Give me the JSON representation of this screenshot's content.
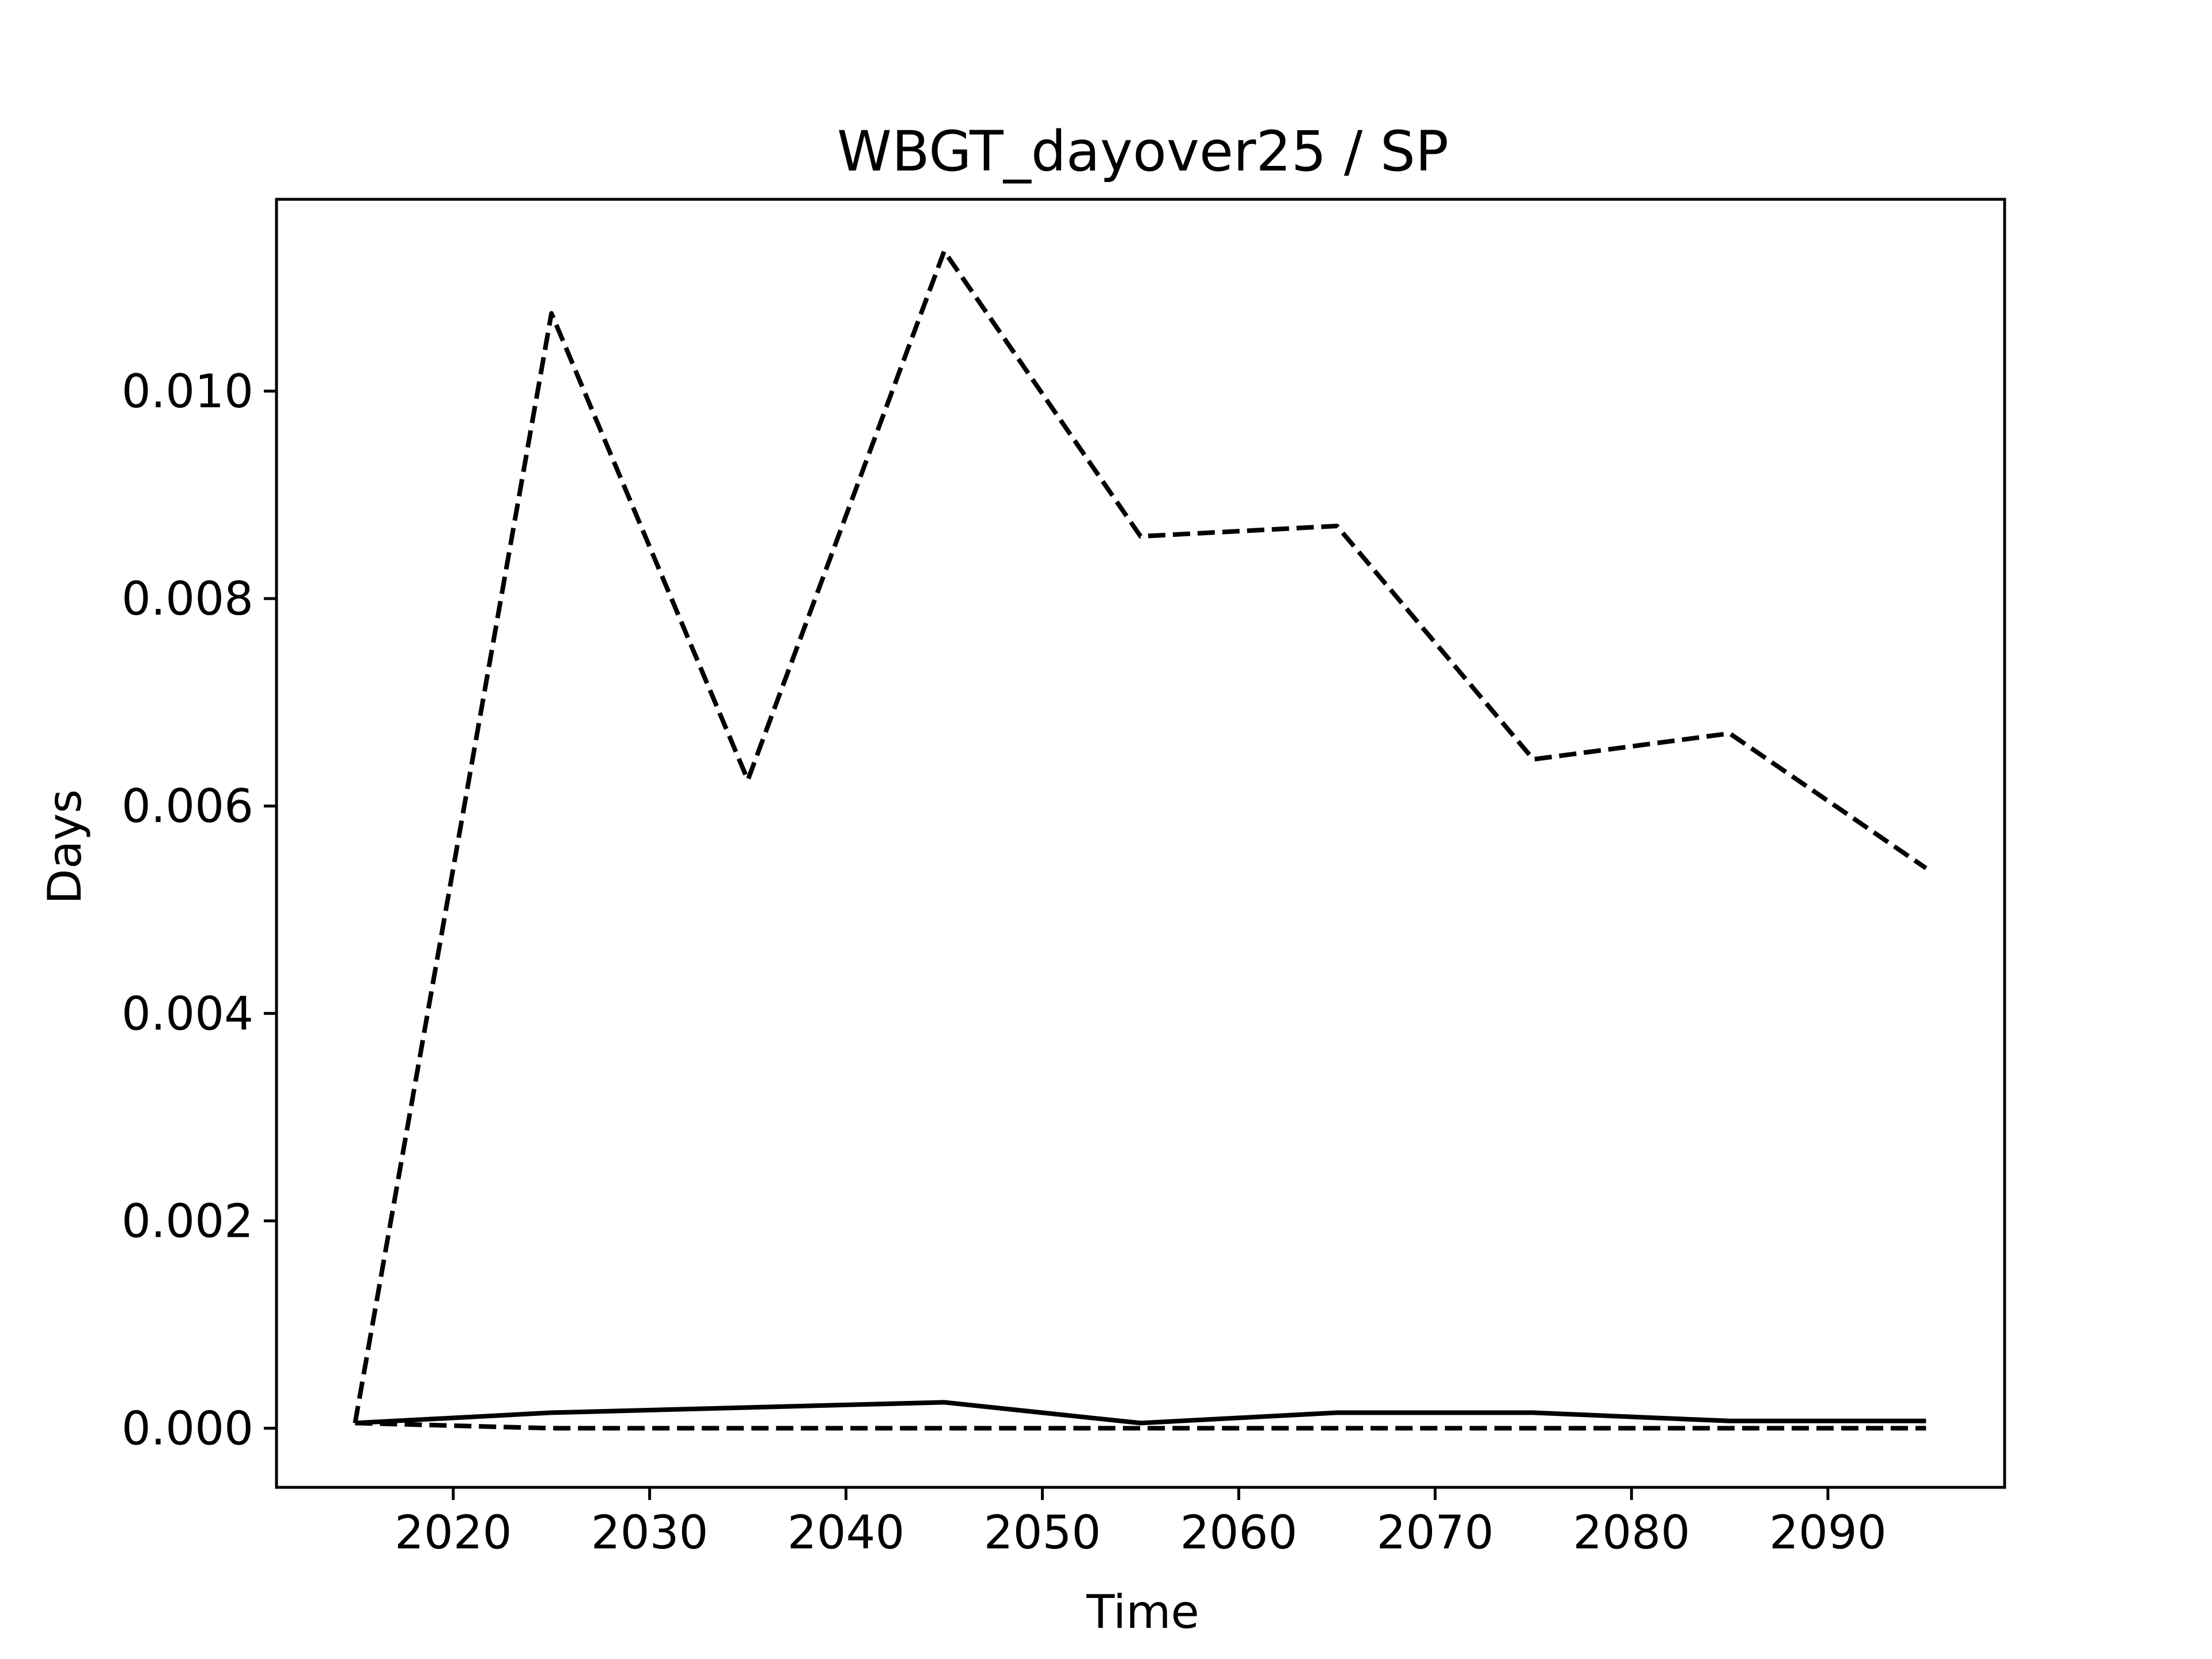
{
  "chart_data": {
    "type": "line",
    "title": "WBGT_dayover25 / SP",
    "xlabel": "Time",
    "ylabel": "Days",
    "xlim": [
      2011,
      2099
    ],
    "ylim": [
      -0.00057,
      0.01185
    ],
    "xticks": [
      2020,
      2030,
      2040,
      2050,
      2060,
      2070,
      2080,
      2090
    ],
    "yticks": [
      0.0,
      0.002,
      0.004,
      0.006,
      0.008,
      0.01
    ],
    "ytick_labels": [
      "0.000",
      "0.002",
      "0.004",
      "0.006",
      "0.008",
      "0.010"
    ],
    "grid": false,
    "x": [
      2015,
      2025,
      2035,
      2045,
      2055,
      2065,
      2075,
      2085,
      2095
    ],
    "series": [
      {
        "style": "solid",
        "color": "#000000",
        "values": [
          5e-05,
          0.00015,
          0.0002,
          0.00025,
          5e-05,
          0.00015,
          0.00015,
          7e-05,
          7e-05
        ]
      },
      {
        "style": "dashed",
        "color": "#000000",
        "values": [
          5e-05,
          0.01075,
          0.00625,
          0.01135,
          0.0086,
          0.0087,
          0.00645,
          0.0067,
          0.0054
        ]
      },
      {
        "style": "dashed",
        "color": "#000000",
        "values": [
          5e-05,
          0.0,
          0.0,
          0.0,
          0.0,
          0.0,
          0.0,
          0.0,
          0.0
        ]
      }
    ]
  }
}
